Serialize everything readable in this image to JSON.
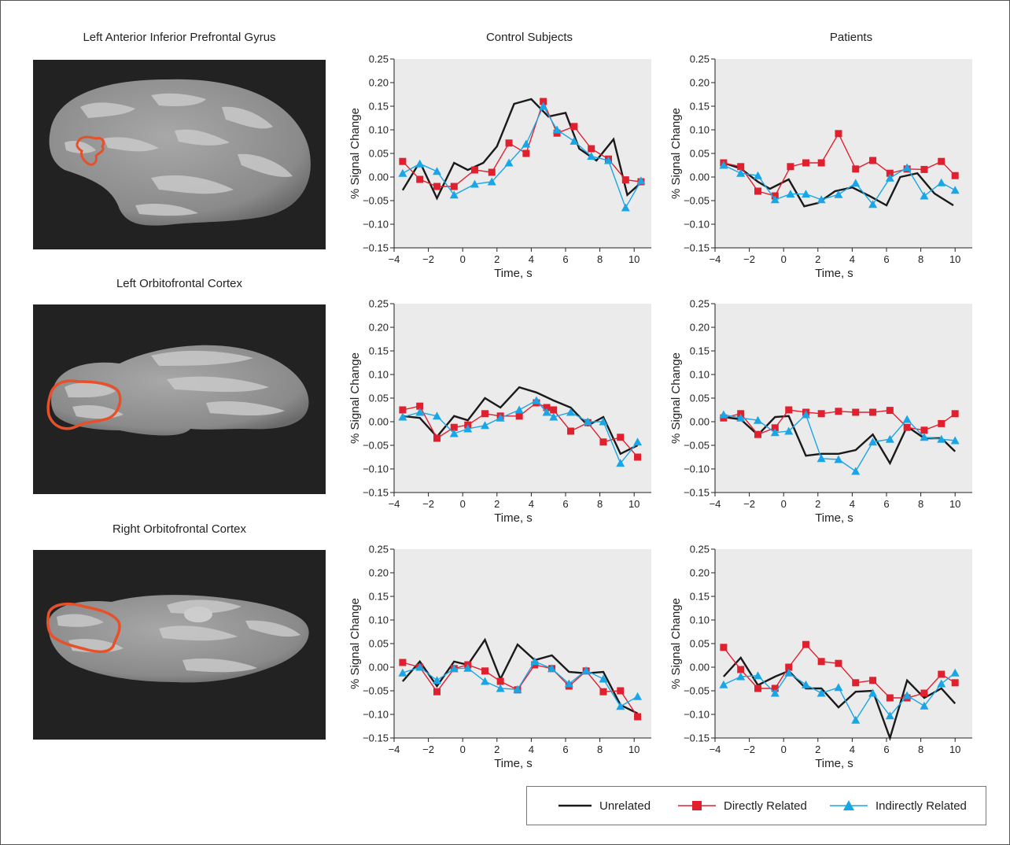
{
  "figure": {
    "column_titles": {
      "regions": "Left Anterior Inferior Prefrontal Gyrus",
      "controls": "Control Subjects",
      "patients": "Patients"
    },
    "region_titles": [
      "Left Orbitofrontal Cortex",
      "Right Orbitofrontal Cortex"
    ]
  },
  "colors": {
    "unrelated": "#1a1a1a",
    "direct": "#e0202e",
    "indirect": "#19a6e6",
    "plot_bg": "#ebebeb",
    "roi_outline": "#e8502a"
  },
  "legend": {
    "unrelated": "Unrelated",
    "direct": "Directly Related",
    "indirect": "Indirectly Related"
  },
  "chart_data": [
    {
      "type": "line",
      "region": "Left Anterior Inferior Prefrontal Gyrus",
      "group": "Control Subjects",
      "xlabel": "Time, s",
      "ylabel": "% Signal Change",
      "xlim": [
        -4,
        11
      ],
      "ylim": [
        -0.15,
        0.25
      ],
      "xticks": [
        -4,
        -2,
        0,
        2,
        4,
        6,
        8,
        10
      ],
      "yticks": [
        -0.15,
        -0.1,
        -0.05,
        0.0,
        0.05,
        0.1,
        0.15,
        0.2,
        0.25
      ],
      "series": [
        {
          "name": "Unrelated",
          "key": "unrelated",
          "marker": "none",
          "x": [
            -3.5,
            -2.5,
            -1.5,
            -0.5,
            0.3,
            1.2,
            2.0,
            3.0,
            4.0,
            5.0,
            6.0,
            6.8,
            7.8,
            8.8,
            9.6,
            10.4
          ],
          "y": [
            -0.028,
            0.032,
            -0.045,
            0.03,
            0.015,
            0.03,
            0.065,
            0.155,
            0.165,
            0.128,
            0.136,
            0.06,
            0.035,
            0.08,
            -0.038,
            -0.012
          ]
        },
        {
          "name": "Directly Related",
          "key": "direct",
          "marker": "square",
          "x": [
            -3.5,
            -2.5,
            -1.5,
            -0.5,
            0.7,
            1.7,
            2.7,
            3.7,
            4.7,
            5.5,
            6.5,
            7.5,
            8.5,
            9.5,
            10.4
          ],
          "y": [
            0.033,
            -0.005,
            -0.02,
            -0.02,
            0.015,
            0.01,
            0.072,
            0.05,
            0.16,
            0.093,
            0.107,
            0.06,
            0.038,
            -0.006,
            -0.01
          ]
        },
        {
          "name": "Indirectly Related",
          "key": "indirect",
          "marker": "triangle",
          "x": [
            -3.5,
            -2.5,
            -1.5,
            -0.5,
            0.7,
            1.7,
            2.7,
            3.7,
            4.7,
            5.5,
            6.5,
            7.5,
            8.5,
            9.5,
            10.4
          ],
          "y": [
            0.008,
            0.028,
            0.012,
            -0.038,
            -0.015,
            -0.01,
            0.03,
            0.07,
            0.15,
            0.1,
            0.076,
            0.044,
            0.035,
            -0.065,
            -0.008
          ]
        }
      ]
    },
    {
      "type": "line",
      "region": "Left Anterior Inferior Prefrontal Gyrus",
      "group": "Patients",
      "xlabel": "Time, s",
      "ylabel": "% Signal Change",
      "xlim": [
        -4,
        11
      ],
      "ylim": [
        -0.15,
        0.25
      ],
      "xticks": [
        -4,
        -2,
        0,
        2,
        4,
        6,
        8,
        10
      ],
      "yticks": [
        -0.15,
        -0.1,
        -0.05,
        0.0,
        0.05,
        0.1,
        0.15,
        0.2,
        0.25
      ],
      "series": [
        {
          "name": "Unrelated",
          "key": "unrelated",
          "marker": "none",
          "x": [
            -3.5,
            -2.5,
            -1.5,
            -0.8,
            0.3,
            1.2,
            2.0,
            3.0,
            4.0,
            5.0,
            6.0,
            6.8,
            7.8,
            8.8,
            9.9
          ],
          "y": [
            0.03,
            0.018,
            -0.01,
            -0.025,
            -0.005,
            -0.062,
            -0.055,
            -0.03,
            -0.022,
            -0.04,
            -0.06,
            0.0,
            0.008,
            -0.035,
            -0.06
          ]
        },
        {
          "name": "Directly Related",
          "key": "direct",
          "marker": "square",
          "x": [
            -3.5,
            -2.5,
            -1.5,
            -0.5,
            0.4,
            1.3,
            2.2,
            3.2,
            4.2,
            5.2,
            6.2,
            7.2,
            8.2,
            9.2,
            10.0
          ],
          "y": [
            0.03,
            0.022,
            -0.03,
            -0.04,
            0.022,
            0.03,
            0.03,
            0.092,
            0.017,
            0.035,
            0.008,
            0.017,
            0.016,
            0.033,
            0.003
          ]
        },
        {
          "name": "Indirectly Related",
          "key": "indirect",
          "marker": "triangle",
          "x": [
            -3.5,
            -2.5,
            -1.5,
            -0.5,
            0.4,
            1.3,
            2.2,
            3.2,
            4.2,
            5.2,
            6.2,
            7.2,
            8.2,
            9.2,
            10.0
          ],
          "y": [
            0.025,
            0.008,
            0.003,
            -0.048,
            -0.036,
            -0.036,
            -0.048,
            -0.037,
            -0.013,
            -0.058,
            -0.002,
            0.02,
            -0.04,
            -0.012,
            -0.028
          ]
        }
      ]
    },
    {
      "type": "line",
      "region": "Left Orbitofrontal Cortex",
      "group": "Control Subjects",
      "xlabel": "Time, s",
      "ylabel": "% Signal Change",
      "xlim": [
        -4,
        11
      ],
      "ylim": [
        -0.15,
        0.25
      ],
      "xticks": [
        -4,
        -2,
        0,
        2,
        4,
        6,
        8,
        10
      ],
      "yticks": [
        -0.15,
        -0.1,
        -0.05,
        0.0,
        0.05,
        0.1,
        0.15,
        0.2,
        0.25
      ],
      "series": [
        {
          "name": "Unrelated",
          "key": "unrelated",
          "marker": "none",
          "x": [
            -3.5,
            -2.5,
            -1.5,
            -0.5,
            0.3,
            1.3,
            2.2,
            3.3,
            4.3,
            5.3,
            6.3,
            7.3,
            8.2,
            9.2,
            10.2
          ],
          "y": [
            0.012,
            0.008,
            -0.032,
            0.012,
            0.003,
            0.05,
            0.03,
            0.073,
            0.062,
            0.045,
            0.03,
            -0.008,
            0.01,
            -0.068,
            -0.05
          ]
        },
        {
          "name": "Directly Related",
          "key": "direct",
          "marker": "square",
          "x": [
            -3.5,
            -2.5,
            -1.5,
            -0.5,
            0.3,
            1.3,
            2.2,
            3.3,
            4.3,
            4.9,
            5.3,
            6.3,
            7.3,
            8.2,
            9.2,
            10.2
          ],
          "y": [
            0.025,
            0.033,
            -0.035,
            -0.012,
            -0.007,
            0.017,
            0.012,
            0.012,
            0.04,
            0.03,
            0.025,
            -0.02,
            -0.002,
            -0.043,
            -0.033,
            -0.075
          ]
        },
        {
          "name": "Indirectly Related",
          "key": "indirect",
          "marker": "triangle",
          "x": [
            -3.5,
            -2.5,
            -1.5,
            -0.5,
            0.3,
            1.3,
            2.2,
            3.3,
            4.3,
            4.9,
            5.3,
            6.3,
            7.3,
            8.2,
            9.2,
            10.2
          ],
          "y": [
            0.01,
            0.02,
            0.012,
            -0.025,
            -0.015,
            -0.008,
            0.008,
            0.025,
            0.045,
            0.02,
            0.01,
            0.02,
            0.0,
            0.0,
            -0.088,
            -0.043
          ]
        }
      ]
    },
    {
      "type": "line",
      "region": "Left Orbitofrontal Cortex",
      "group": "Patients",
      "xlabel": "Time, s",
      "ylabel": "% Signal Change",
      "xlim": [
        -4,
        11
      ],
      "ylim": [
        -0.15,
        0.25
      ],
      "xticks": [
        -4,
        -2,
        0,
        2,
        4,
        6,
        8,
        10
      ],
      "yticks": [
        -0.15,
        -0.1,
        -0.05,
        0.0,
        0.05,
        0.1,
        0.15,
        0.2,
        0.25
      ],
      "series": [
        {
          "name": "Unrelated",
          "key": "unrelated",
          "marker": "none",
          "x": [
            -3.5,
            -2.5,
            -1.5,
            -0.5,
            0.3,
            1.3,
            2.2,
            3.2,
            4.2,
            5.2,
            6.2,
            7.2,
            8.2,
            9.2,
            10.0
          ],
          "y": [
            0.01,
            0.005,
            -0.028,
            0.01,
            0.012,
            -0.072,
            -0.068,
            -0.068,
            -0.06,
            -0.027,
            -0.088,
            -0.01,
            -0.035,
            -0.035,
            -0.063
          ]
        },
        {
          "name": "Directly Related",
          "key": "direct",
          "marker": "square",
          "x": [
            -3.5,
            -2.5,
            -1.5,
            -0.5,
            0.3,
            1.3,
            2.2,
            3.2,
            4.2,
            5.2,
            6.2,
            7.2,
            8.2,
            9.2,
            10.0
          ],
          "y": [
            0.008,
            0.017,
            -0.027,
            -0.013,
            0.025,
            0.02,
            0.017,
            0.022,
            0.02,
            0.02,
            0.024,
            -0.012,
            -0.018,
            -0.004,
            0.017
          ]
        },
        {
          "name": "Indirectly Related",
          "key": "indirect",
          "marker": "triangle",
          "x": [
            -3.5,
            -2.5,
            -1.5,
            -0.5,
            0.3,
            1.3,
            2.2,
            3.2,
            4.2,
            5.2,
            6.2,
            7.2,
            8.2,
            9.2,
            10.0
          ],
          "y": [
            0.015,
            0.008,
            0.003,
            -0.023,
            -0.02,
            0.015,
            -0.078,
            -0.08,
            -0.105,
            -0.043,
            -0.037,
            0.005,
            -0.033,
            -0.037,
            -0.04
          ]
        }
      ]
    },
    {
      "type": "line",
      "region": "Right Orbitofrontal Cortex",
      "group": "Control Subjects",
      "xlabel": "Time, s",
      "ylabel": "% Signal Change",
      "xlim": [
        -4,
        11
      ],
      "ylim": [
        -0.15,
        0.25
      ],
      "xticks": [
        -4,
        -2,
        0,
        2,
        4,
        6,
        8,
        10
      ],
      "yticks": [
        -0.15,
        -0.1,
        -0.05,
        0.0,
        0.05,
        0.1,
        0.15,
        0.2,
        0.25
      ],
      "series": [
        {
          "name": "Unrelated",
          "key": "unrelated",
          "marker": "none",
          "x": [
            -3.5,
            -2.5,
            -1.5,
            -0.5,
            0.3,
            1.3,
            2.2,
            3.2,
            4.2,
            5.2,
            6.2,
            7.2,
            8.2,
            9.2,
            10.2
          ],
          "y": [
            -0.03,
            0.012,
            -0.04,
            0.012,
            0.005,
            0.058,
            -0.025,
            0.048,
            0.015,
            0.025,
            -0.01,
            -0.013,
            -0.01,
            -0.08,
            -0.098
          ]
        },
        {
          "name": "Directly Related",
          "key": "direct",
          "marker": "square",
          "x": [
            -3.5,
            -2.5,
            -1.5,
            -0.5,
            0.3,
            1.3,
            2.2,
            3.2,
            4.2,
            5.2,
            6.2,
            7.2,
            8.2,
            9.2,
            10.2
          ],
          "y": [
            0.01,
            0.0,
            -0.052,
            -0.003,
            0.005,
            -0.008,
            -0.03,
            -0.048,
            0.005,
            -0.003,
            -0.04,
            -0.008,
            -0.052,
            -0.05,
            -0.105
          ]
        },
        {
          "name": "Indirectly Related",
          "key": "indirect",
          "marker": "triangle",
          "x": [
            -3.5,
            -2.5,
            -1.5,
            -0.5,
            0.3,
            1.3,
            2.2,
            3.2,
            4.2,
            5.2,
            6.2,
            7.2,
            8.2,
            9.2,
            10.2
          ],
          "y": [
            -0.012,
            0.0,
            -0.028,
            -0.003,
            -0.002,
            -0.03,
            -0.045,
            -0.047,
            0.012,
            -0.003,
            -0.035,
            -0.007,
            -0.025,
            -0.083,
            -0.062
          ]
        }
      ]
    },
    {
      "type": "line",
      "region": "Right Orbitofrontal Cortex",
      "group": "Patients",
      "xlabel": "Time, s",
      "ylabel": "% Signal Change",
      "xlim": [
        -4,
        11
      ],
      "ylim": [
        -0.15,
        0.25
      ],
      "xticks": [
        -4,
        -2,
        0,
        2,
        4,
        6,
        8,
        10
      ],
      "yticks": [
        -0.15,
        -0.1,
        -0.05,
        0.0,
        0.05,
        0.1,
        0.15,
        0.2,
        0.25
      ],
      "series": [
        {
          "name": "Unrelated",
          "key": "unrelated",
          "marker": "none",
          "x": [
            -3.5,
            -2.5,
            -1.5,
            -0.5,
            0.3,
            1.3,
            2.2,
            3.2,
            4.2,
            5.2,
            6.2,
            7.2,
            8.2,
            9.2,
            10.0
          ],
          "y": [
            -0.02,
            0.02,
            -0.038,
            -0.02,
            -0.008,
            -0.045,
            -0.045,
            -0.085,
            -0.052,
            -0.05,
            -0.15,
            -0.028,
            -0.065,
            -0.045,
            -0.077
          ]
        },
        {
          "name": "Directly Related",
          "key": "direct",
          "marker": "square",
          "x": [
            -3.5,
            -2.5,
            -1.5,
            -0.5,
            0.3,
            1.3,
            2.2,
            3.2,
            4.2,
            5.2,
            6.2,
            7.2,
            8.2,
            9.2,
            10.0
          ],
          "y": [
            0.042,
            -0.005,
            -0.045,
            -0.045,
            0.0,
            0.048,
            0.012,
            0.008,
            -0.033,
            -0.028,
            -0.065,
            -0.065,
            -0.055,
            -0.015,
            -0.033
          ]
        },
        {
          "name": "Indirectly Related",
          "key": "indirect",
          "marker": "triangle",
          "x": [
            -3.5,
            -2.5,
            -1.5,
            -0.5,
            0.3,
            1.3,
            2.2,
            3.2,
            4.2,
            5.2,
            6.2,
            7.2,
            8.2,
            9.2,
            10.0
          ],
          "y": [
            -0.037,
            -0.02,
            -0.018,
            -0.055,
            -0.012,
            -0.037,
            -0.055,
            -0.043,
            -0.112,
            -0.055,
            -0.103,
            -0.06,
            -0.082,
            -0.035,
            -0.012
          ]
        }
      ]
    }
  ]
}
